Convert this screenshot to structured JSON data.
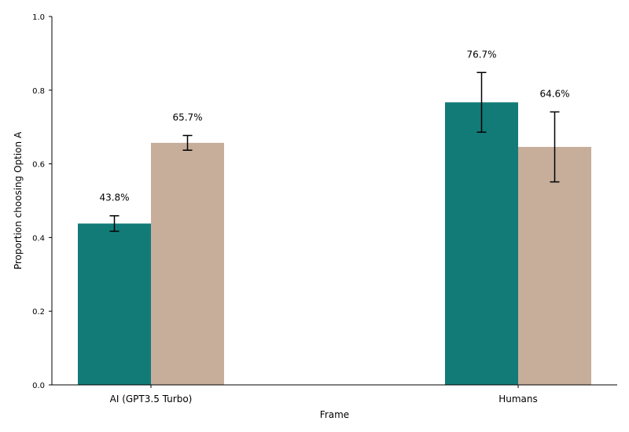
{
  "chart_data": {
    "type": "bar",
    "xlabel": "Frame",
    "ylabel": "Proportion choosing Option A",
    "categories": [
      "AI (GPT3.5 Turbo)",
      "Humans"
    ],
    "ylim": [
      0,
      1.0
    ],
    "yticks": [
      "0.0",
      "0.2",
      "0.4",
      "0.6",
      "0.8",
      "1.0"
    ],
    "grid": false,
    "legend": "none",
    "series": [
      {
        "color": "#127b78",
        "values": [
          0.438,
          0.767
        ],
        "error_low": [
          0.417,
          0.686
        ],
        "error_high": [
          0.459,
          0.848
        ],
        "labels": [
          "43.8%",
          "76.7%"
        ]
      },
      {
        "color": "#c6ae9b",
        "values": [
          0.657,
          0.646
        ],
        "error_low": [
          0.637,
          0.551
        ],
        "error_high": [
          0.677,
          0.741
        ],
        "labels": [
          "65.7%",
          "64.6%"
        ]
      }
    ]
  }
}
